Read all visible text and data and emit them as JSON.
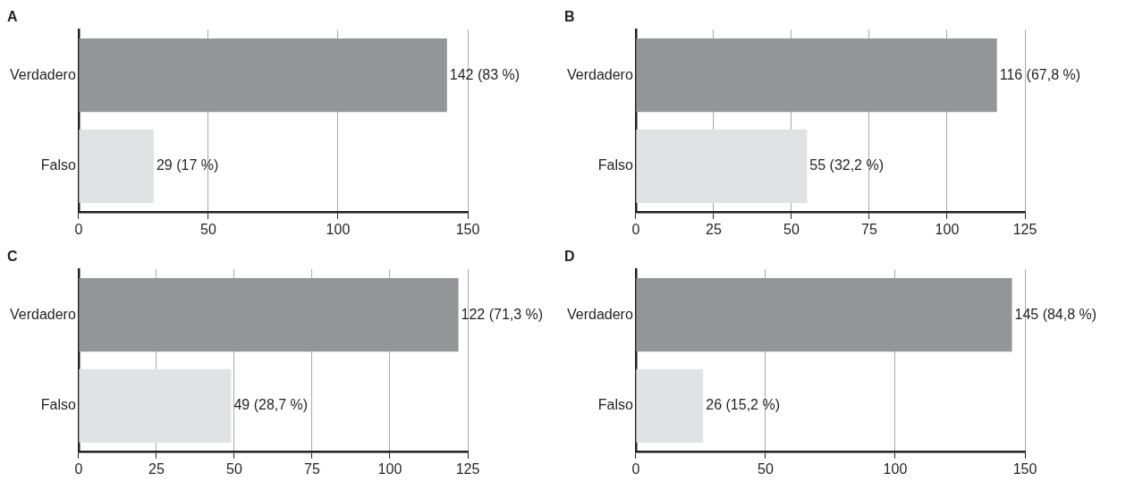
{
  "chart_data": [
    {
      "type": "bar",
      "title": "A",
      "orientation": "horizontal",
      "categories": [
        "Verdadero",
        "Falso"
      ],
      "values": [
        142,
        29
      ],
      "colors": [
        "#939598",
        "#e1e2e3"
      ],
      "value_labels": [
        "142 (83 %)",
        "29 (17 %)"
      ],
      "xlim": [
        0,
        150
      ],
      "xticks": [
        0,
        50,
        100,
        150
      ],
      "grid": "x"
    },
    {
      "type": "bar",
      "title": "B",
      "orientation": "horizontal",
      "categories": [
        "Verdadero",
        "Falso"
      ],
      "values": [
        116,
        55
      ],
      "colors": [
        "#939598",
        "#e1e2e3"
      ],
      "value_labels": [
        "116 (67,8 %)",
        "55 (32,2 %)"
      ],
      "xlim": [
        0,
        125
      ],
      "xticks": [
        0,
        25,
        50,
        75,
        100,
        125
      ],
      "grid": "x"
    },
    {
      "type": "bar",
      "title": "C",
      "orientation": "horizontal",
      "categories": [
        "Verdadero",
        "Falso"
      ],
      "values": [
        122,
        49
      ],
      "colors": [
        "#939598",
        "#e1e2e3"
      ],
      "value_labels": [
        "122 (71,3 %)",
        "49 (28,7 %)"
      ],
      "xlim": [
        0,
        125
      ],
      "xticks": [
        0,
        25,
        50,
        75,
        100,
        125
      ],
      "grid": "x"
    },
    {
      "type": "bar",
      "title": "D",
      "orientation": "horizontal",
      "categories": [
        "Verdadero",
        "Falso"
      ],
      "values": [
        145,
        26
      ],
      "colors": [
        "#939598",
        "#e1e2e3"
      ],
      "value_labels": [
        "145 (84,8 %)",
        "26 (15,2 %)"
      ],
      "xlim": [
        0,
        150
      ],
      "xticks": [
        0,
        50,
        100,
        150
      ],
      "grid": "x"
    }
  ]
}
